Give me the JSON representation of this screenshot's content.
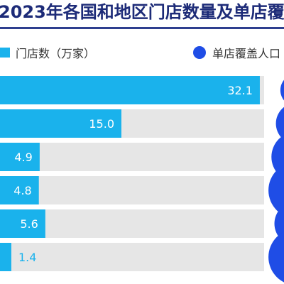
{
  "title": "2023年各国和地区门店数量及单店覆",
  "legend": {
    "bars_label": "门店数（万家）",
    "dots_label": "单店覆盖人口"
  },
  "colors": {
    "title": "#1d2b78",
    "bar_fill": "#1ab2ec",
    "bar_track": "#e6e6e6",
    "dot": "#1f4de6",
    "label_inside": "#ffffff",
    "label_outside": "#1ab2ec"
  },
  "chart_data": {
    "type": "bar",
    "orientation": "horizontal",
    "title": "2023年各国和地区门店数量及单店覆",
    "series": [
      {
        "name": "门店数（万家）",
        "values": [
          32.1,
          15.0,
          4.9,
          4.8,
          5.6,
          1.4
        ],
        "labels": [
          "32.1",
          "15.0",
          "4.9",
          "4.8",
          "5.6",
          "1.4"
        ]
      },
      {
        "name": "单店覆盖人口",
        "type": "bubble",
        "relative_size": [
          0.55,
          0.7,
          0.85,
          0.95,
          0.75,
          0.95
        ]
      }
    ],
    "xlim": [
      0,
      35
    ],
    "grid": false,
    "legend_position": "top"
  }
}
